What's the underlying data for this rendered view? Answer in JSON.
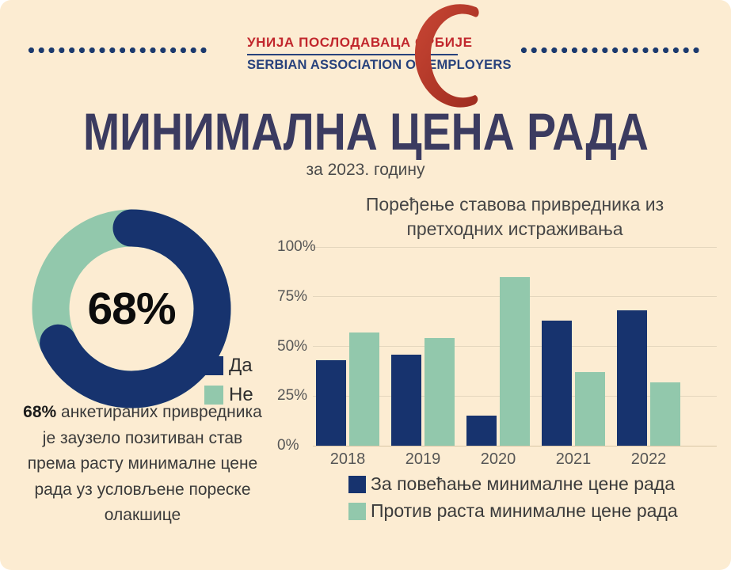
{
  "header": {
    "org_name_sr": "УНИЈА ПОСЛОДАВАЦА СРБИЈЕ",
    "org_name_en": "SERBIAN ASSOCIATION OF EMPLOYERS"
  },
  "title": "МИНИМАЛНА ЦЕНА РАДА",
  "subtitle": "за 2023. годину",
  "donut": {
    "value_pct": 68,
    "center_label": "68%",
    "legend": [
      {
        "label": "Да",
        "color": "#17336e"
      },
      {
        "label": "Не",
        "color": "#92c8ac"
      }
    ],
    "note_bold": "68%",
    "note": "анкетираних привредника је заузело позитиван став према расту минималне цене рада уз условљене пореске олакшице"
  },
  "chart_data": {
    "type": "bar",
    "title": "Поређење ставова привредника из претходних истраживања",
    "categories": [
      "2018",
      "2019",
      "2020",
      "2021",
      "2022"
    ],
    "series": [
      {
        "name": "За повећање минималне цене рада",
        "color": "#17336e",
        "values": [
          43,
          46,
          15,
          63,
          68
        ]
      },
      {
        "name": "Против раста минималне цене рада",
        "color": "#92c8ac",
        "values": [
          57,
          54,
          85,
          37,
          32
        ]
      }
    ],
    "y_ticks": [
      "0%",
      "25%",
      "50%",
      "75%",
      "100%"
    ],
    "ylim": [
      0,
      100
    ],
    "grid": true,
    "legend_position": "bottom"
  },
  "colors": {
    "background": "#fcecd2",
    "accent_navy": "#17336e",
    "accent_green": "#92c8ac",
    "title_navy": "#3b3b60",
    "logo_red": "#b43a2b"
  }
}
